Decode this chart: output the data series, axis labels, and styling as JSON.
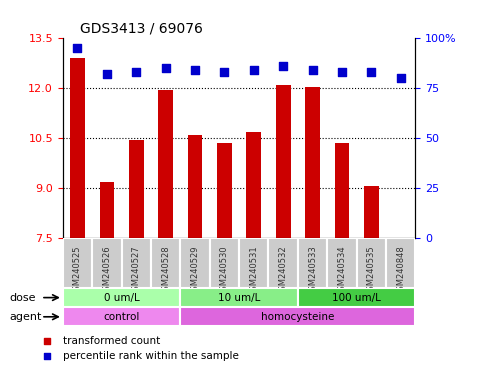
{
  "title": "GDS3413 / 69076",
  "samples": [
    "GSM240525",
    "GSM240526",
    "GSM240527",
    "GSM240528",
    "GSM240529",
    "GSM240530",
    "GSM240531",
    "GSM240532",
    "GSM240533",
    "GSM240534",
    "GSM240535",
    "GSM240848"
  ],
  "bar_values": [
    12.9,
    9.2,
    10.45,
    11.95,
    10.6,
    10.35,
    10.7,
    12.1,
    12.05,
    10.35,
    9.05,
    7.5
  ],
  "percentile_values": [
    95,
    82,
    83,
    85,
    84,
    83,
    84,
    86,
    84,
    83,
    83,
    80
  ],
  "ylim_left": [
    7.5,
    13.5
  ],
  "ylim_right": [
    0,
    100
  ],
  "yticks_left": [
    7.5,
    9.0,
    10.5,
    12.0,
    13.5
  ],
  "yticks_right": [
    0,
    25,
    50,
    75,
    100
  ],
  "bar_color": "#cc0000",
  "dot_color": "#0000cc",
  "bar_width": 0.5,
  "grid_color": "black",
  "dose_groups": [
    {
      "label": "0 um/L",
      "start": 0,
      "end": 4,
      "color": "#aaffaa"
    },
    {
      "label": "10 um/L",
      "start": 4,
      "end": 8,
      "color": "#88ee88"
    },
    {
      "label": "100 um/L",
      "start": 8,
      "end": 12,
      "color": "#44cc44"
    }
  ],
  "agent_groups": [
    {
      "label": "control",
      "start": 0,
      "end": 4,
      "color": "#ee88ee"
    },
    {
      "label": "homocysteine",
      "start": 4,
      "end": 12,
      "color": "#dd66dd"
    }
  ],
  "dose_label": "dose",
  "agent_label": "agent",
  "legend_bar_label": "transformed count",
  "legend_dot_label": "percentile rank within the sample",
  "xlabel_rotation": 45,
  "tick_label_color": "#555555",
  "background_color": "#ffffff",
  "plot_bg_color": "#ffffff",
  "xaxis_bg_color": "#cccccc"
}
